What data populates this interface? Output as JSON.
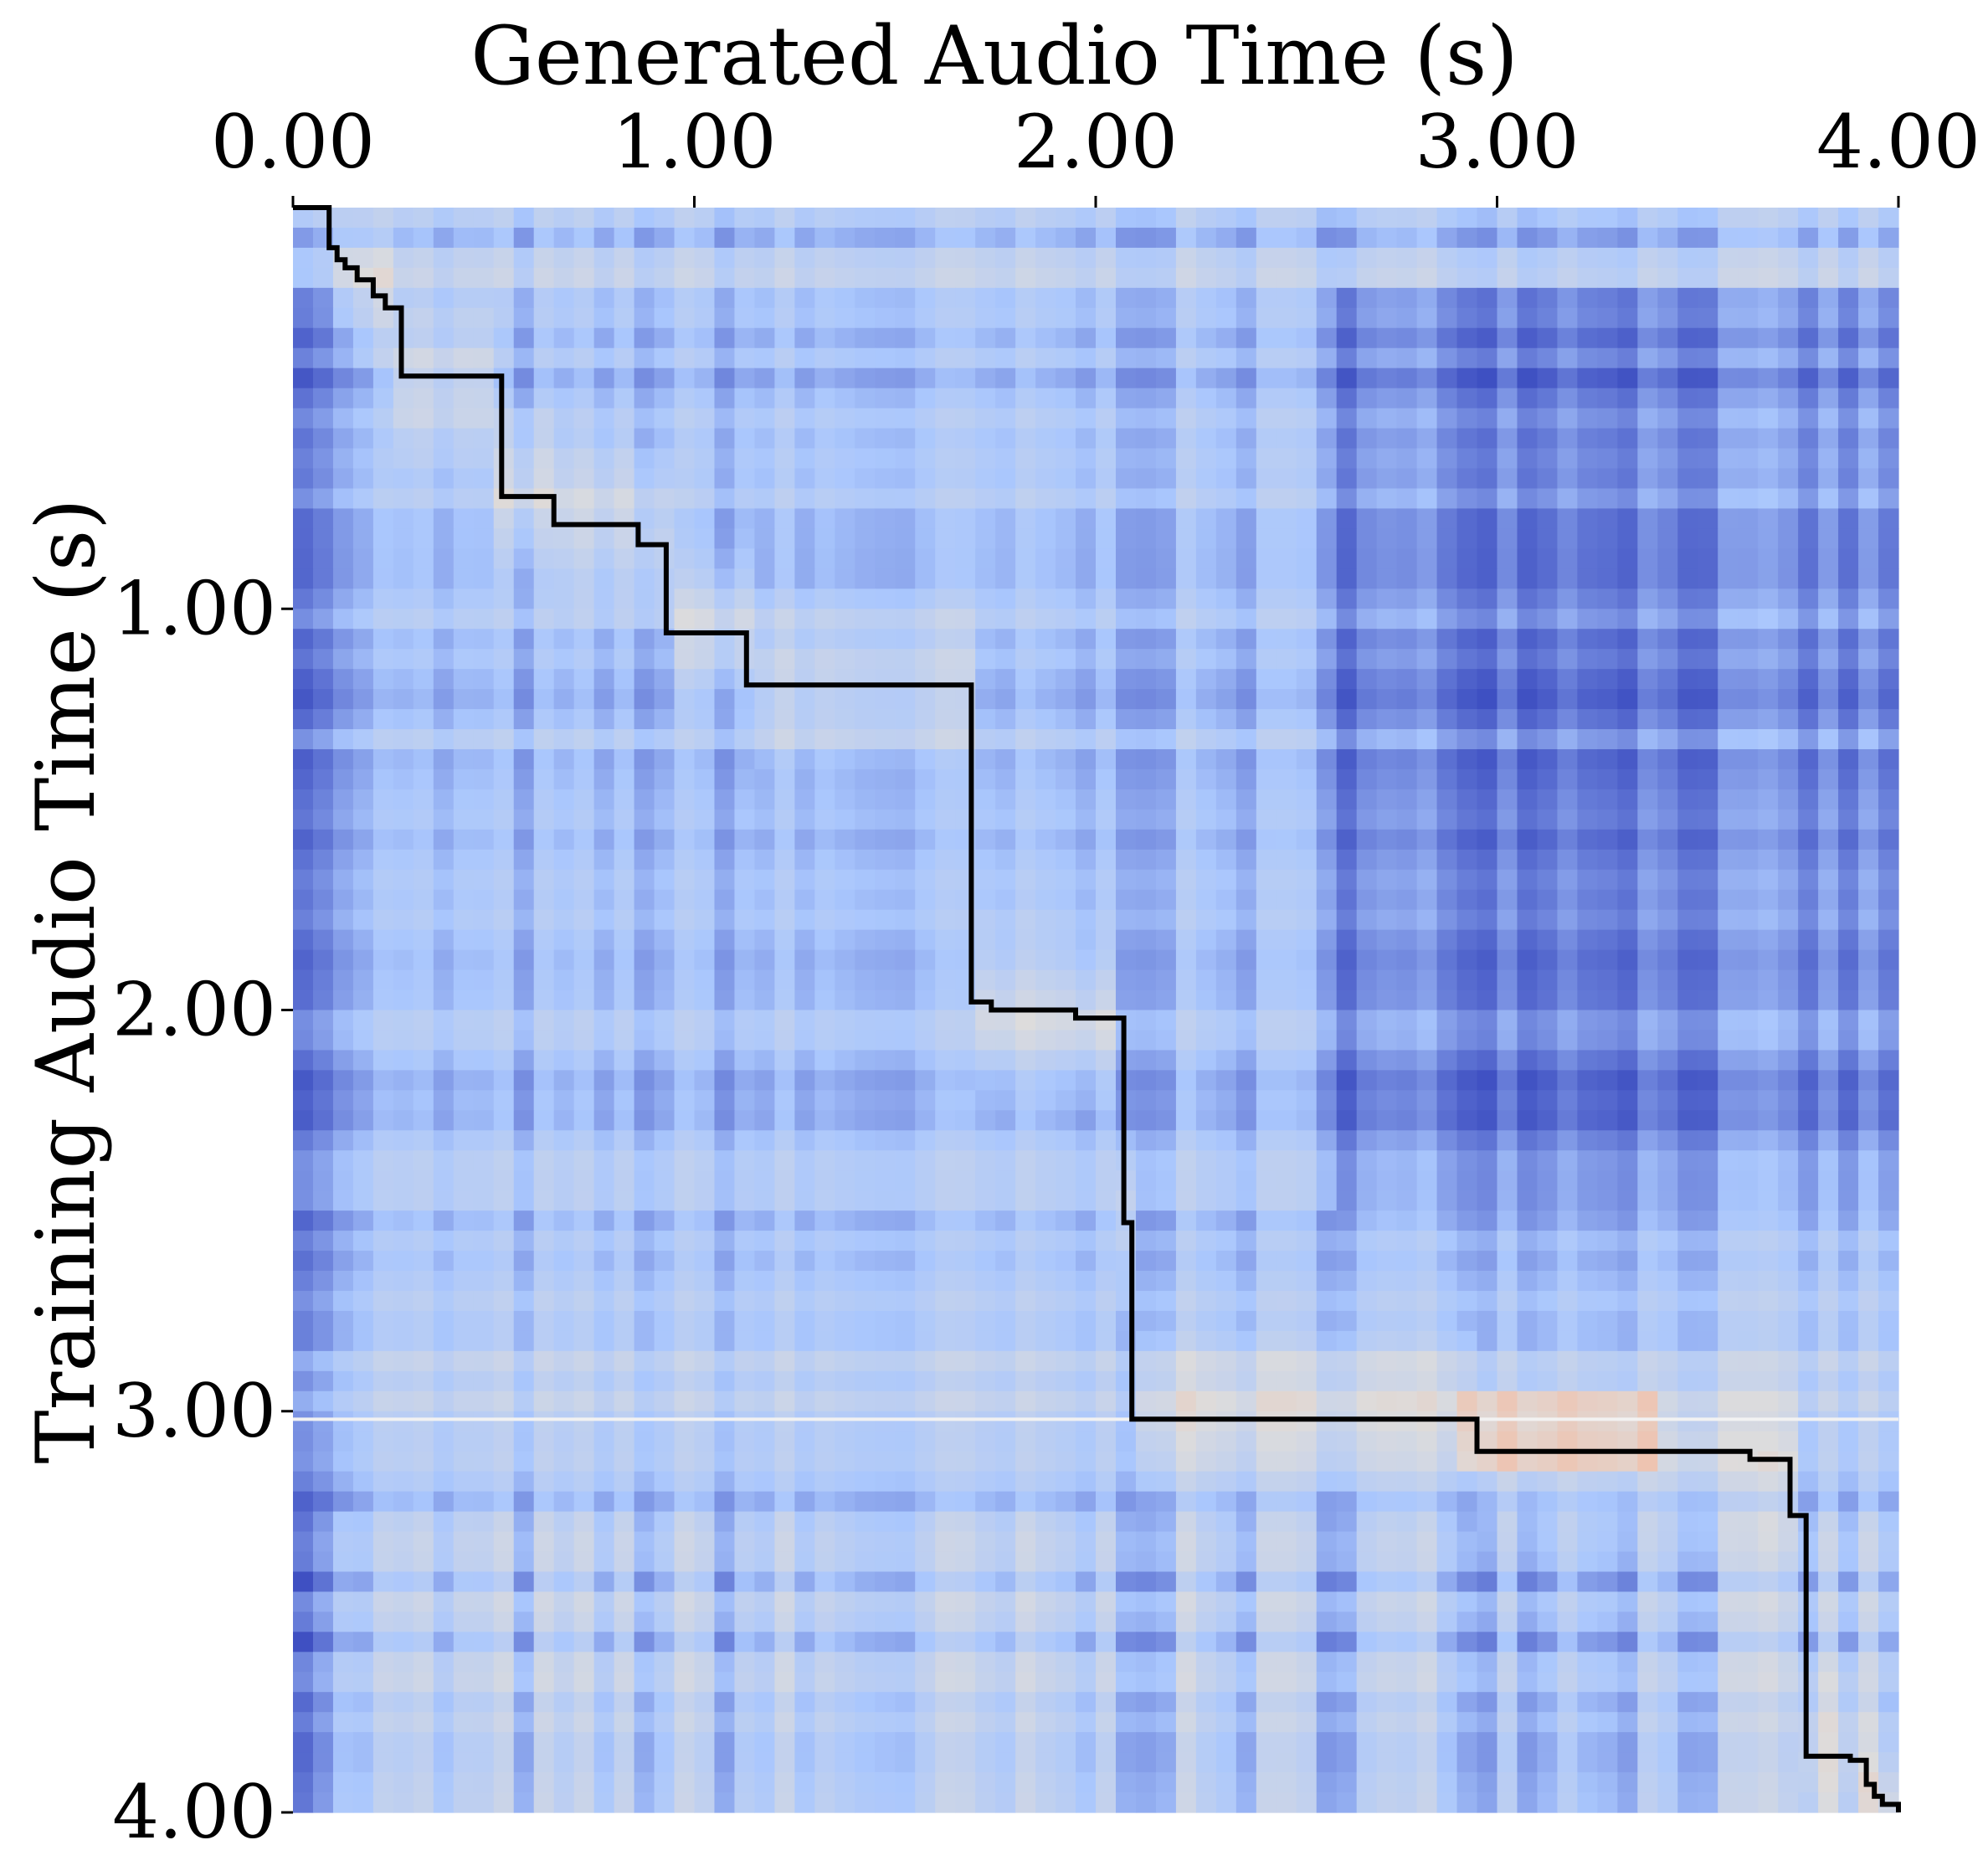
{
  "chart_data": {
    "type": "heatmap",
    "title": "",
    "xlabel": "Generated Audio Time (s)",
    "ylabel": "Training Audio Time (s)",
    "xlim": [
      0,
      4
    ],
    "ylim": [
      0,
      4
    ],
    "y_inverted": true,
    "x_axis_position": "top",
    "x_ticks": [
      {
        "value": 0,
        "label": "0.00"
      },
      {
        "value": 1,
        "label": "1.00"
      },
      {
        "value": 2,
        "label": "2.00"
      },
      {
        "value": 3,
        "label": "3.00"
      },
      {
        "value": 4,
        "label": "4.00"
      }
    ],
    "y_ticks": [
      {
        "value": 1,
        "label": "1.00"
      },
      {
        "value": 2,
        "label": "2.00"
      },
      {
        "value": 3,
        "label": "3.00"
      },
      {
        "value": 4,
        "label": "4.00"
      }
    ],
    "colormap": [
      "#3b4cc0",
      "#aac7fd",
      "#dddcdc",
      "#f7b89c"
    ],
    "alignment_path_color": "#000000",
    "alignment_path": [
      [
        0.0,
        0.0
      ],
      [
        0.09,
        0.0
      ],
      [
        0.09,
        0.1
      ],
      [
        0.11,
        0.1
      ],
      [
        0.11,
        0.13
      ],
      [
        0.13,
        0.13
      ],
      [
        0.13,
        0.15
      ],
      [
        0.16,
        0.15
      ],
      [
        0.16,
        0.18
      ],
      [
        0.2,
        0.18
      ],
      [
        0.2,
        0.22
      ],
      [
        0.23,
        0.22
      ],
      [
        0.23,
        0.25
      ],
      [
        0.27,
        0.25
      ],
      [
        0.27,
        0.42
      ],
      [
        0.52,
        0.42
      ],
      [
        0.52,
        0.72
      ],
      [
        0.65,
        0.72
      ],
      [
        0.65,
        0.79
      ],
      [
        0.86,
        0.79
      ],
      [
        0.86,
        0.84
      ],
      [
        0.93,
        0.84
      ],
      [
        0.93,
        1.06
      ],
      [
        1.13,
        1.06
      ],
      [
        1.13,
        1.19
      ],
      [
        1.69,
        1.19
      ],
      [
        1.69,
        1.98
      ],
      [
        1.74,
        1.98
      ],
      [
        1.74,
        2.0
      ],
      [
        1.95,
        2.0
      ],
      [
        1.95,
        2.02
      ],
      [
        2.07,
        2.02
      ],
      [
        2.07,
        2.53
      ],
      [
        2.09,
        2.53
      ],
      [
        2.09,
        3.02
      ],
      [
        2.95,
        3.02
      ],
      [
        2.95,
        3.1
      ],
      [
        3.63,
        3.1
      ],
      [
        3.63,
        3.12
      ],
      [
        3.73,
        3.12
      ],
      [
        3.73,
        3.26
      ],
      [
        3.77,
        3.26
      ],
      [
        3.77,
        3.86
      ],
      [
        3.88,
        3.86
      ],
      [
        3.88,
        3.87
      ],
      [
        3.92,
        3.87
      ],
      [
        3.92,
        3.93
      ],
      [
        3.94,
        3.93
      ],
      [
        3.94,
        3.96
      ],
      [
        3.96,
        3.96
      ],
      [
        3.96,
        3.98
      ],
      [
        4.0,
        3.98
      ],
      [
        4.0,
        4.0
      ]
    ]
  }
}
